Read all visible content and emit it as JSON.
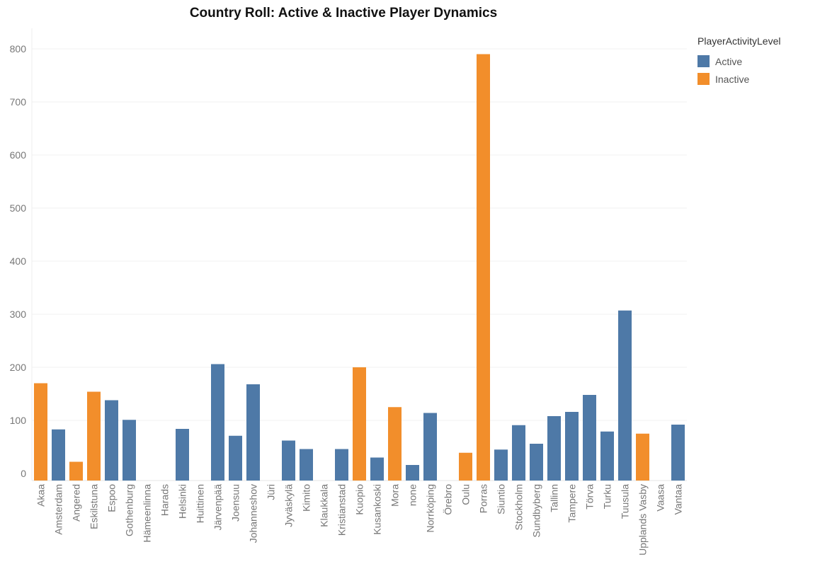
{
  "chart_data": {
    "type": "bar",
    "title": "Country Roll: Active & Inactive Player Dynamics",
    "xlabel": "",
    "ylabel": "",
    "ylim": [
      0,
      800
    ],
    "yticks": [
      0,
      100,
      200,
      300,
      400,
      500,
      600,
      700,
      800
    ],
    "grid": true,
    "legend": {
      "title": "PlayerActivityLevel",
      "placement": "right",
      "entries": [
        {
          "name": "Active",
          "color": "#4e79a7"
        },
        {
          "name": "Inactive",
          "color": "#f28e2b"
        }
      ]
    },
    "categories": [
      "Akaa",
      "Amsterdam",
      "Angered",
      "Eskilstuna",
      "Espoo",
      "Gothenburg",
      "Hämeenlinna",
      "Harads",
      "Helsinki",
      "Huittinen",
      "Järvenpää",
      "Joensuu",
      "Johanneshov",
      "Jüri",
      "Jyväskylä",
      "Kimito",
      "Klaukkala",
      "Kristianstad",
      "Kuopio",
      "Kusankoski",
      "Mora",
      "none",
      "Norrköping",
      "Örebro",
      "Oulu",
      "Porras",
      "Siuntio",
      "Stockholm",
      "Sundbyberg",
      "Tallinn",
      "Tampere",
      "Törva",
      "Turku",
      "Tuusula",
      "Upplands Vasby",
      "Vaasa",
      "Vantaa"
    ],
    "values": [
      170,
      83,
      22,
      154,
      138,
      101,
      0,
      0,
      84,
      0,
      206,
      71,
      168,
      0,
      62,
      46,
      0,
      46,
      200,
      30,
      125,
      16,
      114,
      0,
      39,
      790,
      45,
      91,
      56,
      108,
      116,
      148,
      79,
      307,
      75,
      0,
      92
    ],
    "activity": [
      "Inactive",
      "Active",
      "Inactive",
      "Inactive",
      "Active",
      "Active",
      "Active",
      "Active",
      "Active",
      "Active",
      "Active",
      "Active",
      "Active",
      "Active",
      "Active",
      "Active",
      "Active",
      "Active",
      "Inactive",
      "Active",
      "Inactive",
      "Active",
      "Active",
      "Active",
      "Inactive",
      "Inactive",
      "Active",
      "Active",
      "Active",
      "Active",
      "Active",
      "Active",
      "Active",
      "Active",
      "Inactive",
      "Active",
      "Active"
    ]
  }
}
